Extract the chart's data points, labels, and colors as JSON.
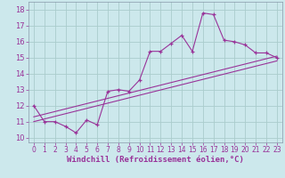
{
  "x_data": [
    0,
    1,
    2,
    3,
    4,
    5,
    6,
    7,
    8,
    9,
    10,
    11,
    12,
    13,
    14,
    15,
    16,
    17,
    18,
    19,
    20,
    21,
    22,
    23
  ],
  "y_data": [
    12,
    11,
    11,
    10.7,
    10.3,
    11.1,
    10.8,
    12.9,
    13.0,
    12.9,
    13.6,
    15.4,
    15.4,
    15.9,
    16.4,
    15.4,
    17.8,
    17.7,
    16.1,
    16.0,
    15.8,
    15.3,
    15.3,
    15.0
  ],
  "trend1_x": [
    0,
    23
  ],
  "trend1_y": [
    11.3,
    15.1
  ],
  "trend2_x": [
    0,
    23
  ],
  "trend2_y": [
    11.0,
    14.8
  ],
  "line_color": "#993399",
  "bg_color": "#cce8ec",
  "grid_color": "#aacccc",
  "xlabel": "Windchill (Refroidissement éolien,°C)",
  "ylabel_ticks": [
    10,
    11,
    12,
    13,
    14,
    15,
    16,
    17,
    18
  ],
  "xlim": [
    -0.5,
    23.5
  ],
  "ylim": [
    9.7,
    18.5
  ],
  "xlabel_fontsize": 6.5,
  "tick_fontsize": 6.0
}
